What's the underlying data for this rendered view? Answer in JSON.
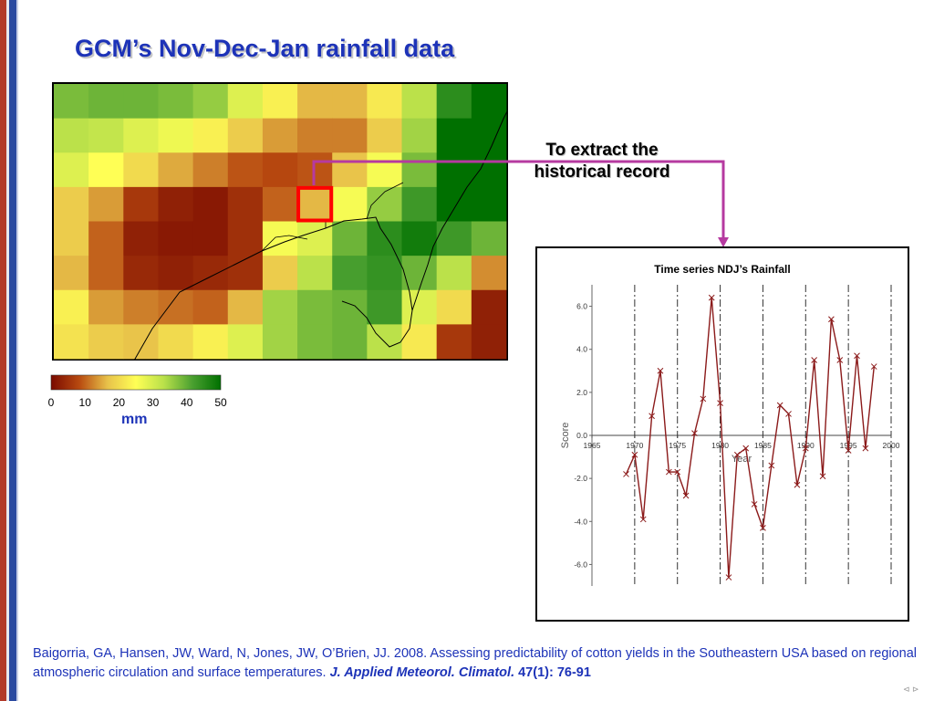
{
  "slide": {
    "title": "GCM’s Nov-Dec-Jan rainfall data",
    "callout_line1": "To extract the",
    "callout_line2": "historical record",
    "citation_text": "Baigorria, GA, Hansen, JW, Ward, N, Jones, JW, O’Brien, JJ. 2008. Assessing predictability of cotton yields in the Southeastern USA based on regional atmospheric circulation and surface temperatures. ",
    "citation_journal": "J. Applied Meteorol. Climatol.",
    "citation_volume": " 47(1): 76-91",
    "nav_icons": "⊲ ⊳"
  },
  "colors": {
    "title": "#1d33b8",
    "highlight_box": "#ff0000",
    "connector": "#b63aa0",
    "series": "#8b1a1a"
  },
  "map_legend": {
    "tick_labels": [
      "0",
      "10",
      "20",
      "30",
      "40",
      "50"
    ],
    "unit": "mm",
    "colorscale": [
      "#7a0a00",
      "#b84a10",
      "#e8c24a",
      "#ffff55",
      "#b8e04a",
      "#4aa030",
      "#007000"
    ]
  },
  "chart_data": [
    {
      "type": "heatmap",
      "title": "",
      "value_range": [
        0,
        50
      ],
      "rows": 8,
      "cols": 13,
      "values": [
        [
          38,
          39,
          39,
          38,
          36,
          29,
          23,
          16,
          16,
          22,
          33,
          45,
          50
        ],
        [
          33,
          32,
          29,
          27,
          23,
          18,
          14,
          12,
          12,
          18,
          35,
          50,
          50
        ],
        [
          29,
          25,
          20,
          15,
          12,
          9,
          8,
          9,
          17,
          26,
          38,
          50,
          50
        ],
        [
          18,
          14,
          6,
          3,
          2,
          5,
          10,
          16,
          26,
          36,
          43,
          50,
          50
        ],
        [
          18,
          10,
          3,
          2,
          2,
          5,
          26,
          29,
          39,
          45,
          48,
          43,
          39
        ],
        [
          16,
          10,
          4,
          3,
          4,
          5,
          18,
          33,
          42,
          44,
          39,
          33,
          13
        ],
        [
          23,
          14,
          12,
          11,
          10,
          16,
          35,
          38,
          39,
          43,
          29,
          20,
          3
        ],
        [
          21,
          18,
          17,
          20,
          23,
          29,
          35,
          38,
          39,
          33,
          22,
          6,
          3
        ]
      ],
      "highlight_cell": {
        "row": 3,
        "col": 7
      }
    },
    {
      "type": "line",
      "title": "Time series NDJ’s Rainfall",
      "xlabel": "Year",
      "ylabel": "Score",
      "xlim": [
        1965,
        2000
      ],
      "ylim": [
        -7,
        7
      ],
      "x_ticks": [
        1965,
        1970,
        1975,
        1980,
        1985,
        1990,
        1995,
        2000
      ],
      "x_tick_labels": [
        "1965",
        "1970",
        "1975",
        "1980",
        "1985",
        "1990",
        "1995",
        "2000"
      ],
      "y_ticks": [
        -6,
        -4,
        -2,
        0,
        2,
        4,
        6
      ],
      "y_tick_labels": [
        "-6.0",
        "-4.0",
        "-2.0",
        "0.0",
        "2.0",
        "4.0",
        "6.0"
      ],
      "vlines": [
        1970,
        1975,
        1980,
        1985,
        1990,
        1995,
        2000
      ],
      "grid": false,
      "series": [
        {
          "x": [
            1969,
            1970,
            1971,
            1972,
            1973,
            1974,
            1975,
            1976,
            1977,
            1978,
            1979,
            1980,
            1981,
            1982,
            1983,
            1984,
            1985,
            1986,
            1987,
            1988,
            1989,
            1990,
            1991,
            1992,
            1993,
            1994,
            1995,
            1996,
            1997,
            1998
          ],
          "values": [
            -1.8,
            -0.9,
            -3.9,
            0.9,
            3.0,
            -1.7,
            -1.7,
            -2.8,
            0.1,
            1.7,
            6.4,
            1.5,
            -6.6,
            -0.9,
            -0.6,
            -3.2,
            -4.3,
            -1.4,
            1.4,
            1.0,
            -2.3,
            -0.6,
            3.5,
            -1.9,
            5.4,
            3.5,
            -0.7,
            3.7,
            -0.6,
            3.2
          ]
        }
      ]
    }
  ]
}
